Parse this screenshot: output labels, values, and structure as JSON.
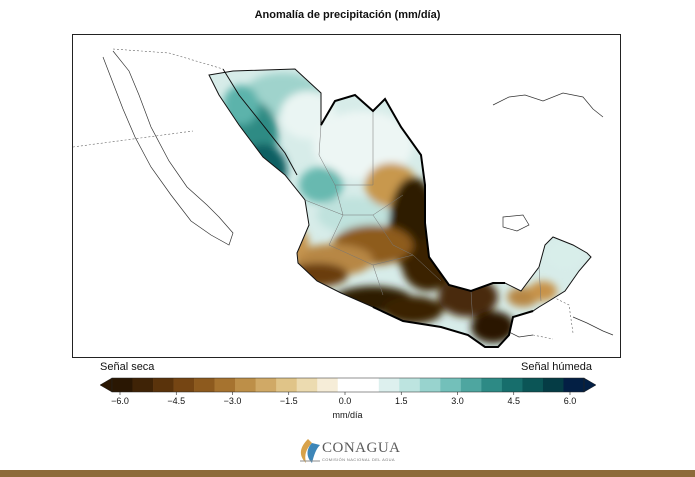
{
  "title": "Anomalía de precipitación (mm/día)",
  "legend": {
    "dry_label": "Señal seca",
    "wet_label": "Señal húmeda",
    "unit": "mm/día",
    "ticks": [
      "−6.0",
      "−4.5",
      "−3.0",
      "−1.5",
      "0.0",
      "1.5",
      "3.0",
      "4.5",
      "6.0"
    ],
    "colors": [
      "#2a1703",
      "#3f2306",
      "#5a330b",
      "#754513",
      "#8d5a1e",
      "#a6732f",
      "#bd8f48",
      "#d0a966",
      "#e0c488",
      "#ecdbb0",
      "#f6edd8",
      "#ffffff",
      "#ffffff",
      "#ddf0ee",
      "#bde4e0",
      "#98d3ce",
      "#73c0ba",
      "#4ea6a0",
      "#2d8a85",
      "#176e6c",
      "#0b5556",
      "#053c45",
      "#031f44"
    ]
  },
  "logo": {
    "name": "CONAGUA",
    "subtitle": "COMISIÓN NACIONAL DEL AGUA"
  }
}
